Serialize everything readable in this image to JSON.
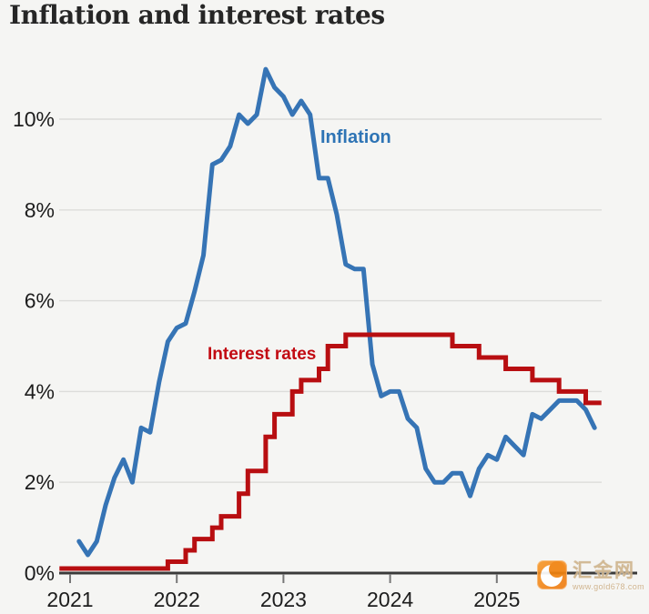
{
  "title": "Inflation and interest rates",
  "series_labels": {
    "inflation": "Inflation",
    "interest_rates": "Interest rates"
  },
  "watermark": {
    "site_name": "汇金网",
    "site_url": "www.gold678.com"
  },
  "colors": {
    "background": "#f5f5f3",
    "inflation_line": "#3674b5",
    "inflation_label": "#2e74b5",
    "interest_line": "#b80e11",
    "interest_label": "#c20a12",
    "gridline": "#dcdcda",
    "axis_line": "#3a3a3a",
    "tick": "#777777",
    "axis_text": "#1d1d1d",
    "watermark_orange": "#f1830f",
    "watermark_text": "#d0b58e"
  },
  "chart_data": {
    "type": "line",
    "title": "Inflation and interest rates",
    "xlabel": "",
    "ylabel": "",
    "grid": "horizontal",
    "legend": "inline-labels",
    "x_axis": {
      "tick_labels": [
        "2021",
        "2022",
        "2023",
        "2024",
        "2025"
      ],
      "tick_values": [
        2021,
        2022,
        2023,
        2024,
        2025
      ],
      "xlim_decimal_years": [
        2020.9,
        2026.05
      ]
    },
    "y_axis": {
      "unit": "%",
      "tick_labels": [
        "0%",
        "2%",
        "4%",
        "6%",
        "8%",
        "10%"
      ],
      "tick_values": [
        0,
        2,
        4,
        6,
        8,
        10
      ],
      "ylim": [
        0,
        11.6
      ]
    },
    "series": [
      {
        "name": "Inflation",
        "kind": "monthly_line",
        "unit": "%",
        "start_month": "2021-01",
        "end_month": "2025-11",
        "plot_offset_months": 1,
        "values": [
          0.7,
          0.4,
          0.7,
          1.5,
          2.1,
          2.5,
          2.0,
          3.2,
          3.1,
          4.2,
          5.1,
          5.4,
          5.5,
          6.2,
          7.0,
          9.0,
          9.1,
          9.4,
          10.1,
          9.9,
          10.1,
          11.1,
          10.7,
          10.5,
          10.1,
          10.4,
          10.1,
          8.7,
          8.7,
          7.9,
          6.8,
          6.7,
          6.7,
          4.6,
          3.9,
          4.0,
          4.0,
          3.4,
          3.2,
          2.3,
          2.0,
          2.0,
          2.2,
          2.2,
          1.7,
          2.3,
          2.6,
          2.5,
          3.0,
          2.8,
          2.6,
          3.5,
          3.4,
          3.6,
          3.8,
          3.8,
          3.8,
          3.6,
          3.2
        ]
      },
      {
        "name": "Interest rates",
        "kind": "step_line",
        "unit": "%",
        "changes": [
          [
            "2021-01",
            0.1
          ],
          [
            "2021-12",
            0.25
          ],
          [
            "2022-02",
            0.5
          ],
          [
            "2022-03",
            0.75
          ],
          [
            "2022-05",
            1.0
          ],
          [
            "2022-06",
            1.25
          ],
          [
            "2022-08",
            1.75
          ],
          [
            "2022-09",
            2.25
          ],
          [
            "2022-11",
            3.0
          ],
          [
            "2022-12",
            3.5
          ],
          [
            "2023-02",
            4.0
          ],
          [
            "2023-03",
            4.25
          ],
          [
            "2023-05",
            4.5
          ],
          [
            "2023-06",
            5.0
          ],
          [
            "2023-08",
            5.25
          ],
          [
            "2024-08",
            5.0
          ],
          [
            "2024-11",
            4.75
          ],
          [
            "2025-02",
            4.5
          ],
          [
            "2025-05",
            4.25
          ],
          [
            "2025-08",
            4.0
          ],
          [
            "2025-11",
            3.75
          ]
        ],
        "plot_lead_in_decimal_year": 2020.9,
        "end_decimal_year": 2025.98
      }
    ]
  }
}
